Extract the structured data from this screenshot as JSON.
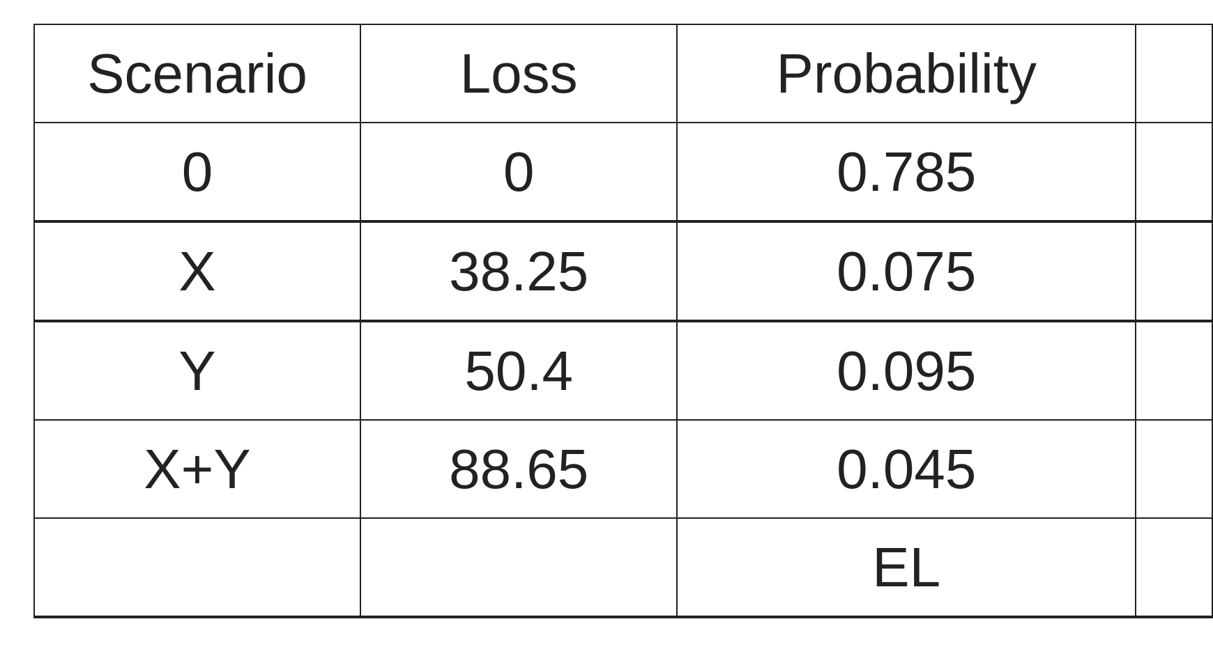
{
  "table": {
    "headers": [
      "Scenario",
      "Loss",
      "Probability",
      ""
    ],
    "rows": [
      [
        "0",
        "0",
        "0.785",
        ""
      ],
      [
        "X",
        "38.25",
        "0.075",
        ""
      ],
      [
        "Y",
        "50.4",
        "0.095",
        ""
      ],
      [
        "X+Y",
        "88.65",
        "0.045",
        ""
      ],
      [
        "",
        "",
        "EL",
        ""
      ]
    ]
  }
}
